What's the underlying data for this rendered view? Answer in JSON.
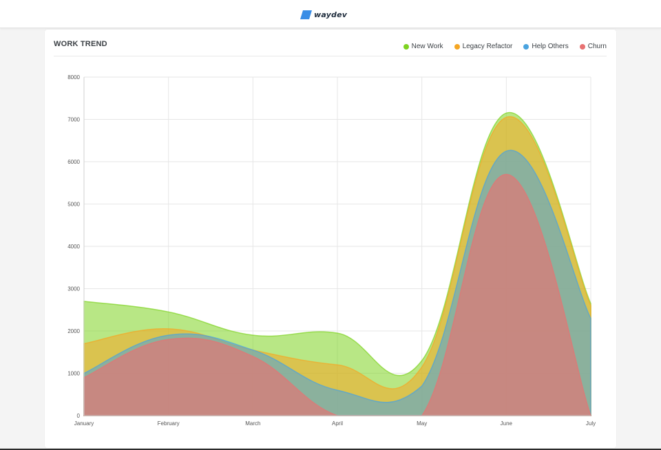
{
  "app": {
    "logo_text": "waydev"
  },
  "card": {
    "title": "WORK TREND"
  },
  "colors": {
    "logo_mark": "#3a8ee6",
    "new_work": "#7ed321",
    "legacy_refactor": "#f5a623",
    "help_others": "#4aa3df",
    "churn": "#e87272"
  },
  "chart_data": {
    "type": "area",
    "stacked": true,
    "categories": [
      "January",
      "February",
      "March",
      "April",
      "May",
      "June",
      "July"
    ],
    "ylim": [
      0,
      8000
    ],
    "yticks": [
      0,
      1000,
      2000,
      3000,
      4000,
      5000,
      6000,
      7000,
      8000
    ],
    "grid": true,
    "legend_position": "top-right",
    "series": [
      {
        "name": "Churn",
        "color": "#e87272",
        "values": [
          900,
          1800,
          1400,
          0,
          0,
          5700,
          0
        ]
      },
      {
        "name": "Help Others",
        "color": "#4aa3df",
        "values": [
          100,
          100,
          150,
          600,
          700,
          550,
          2300
        ]
      },
      {
        "name": "Legacy Refactor",
        "color": "#f5a623",
        "values": [
          700,
          150,
          0,
          600,
          450,
          800,
          300
        ]
      },
      {
        "name": "New Work",
        "color": "#7ed321",
        "values": [
          1000,
          400,
          350,
          750,
          150,
          100,
          50
        ]
      }
    ],
    "legend_order": [
      "New Work",
      "Legacy Refactor",
      "Help Others",
      "Churn"
    ]
  }
}
